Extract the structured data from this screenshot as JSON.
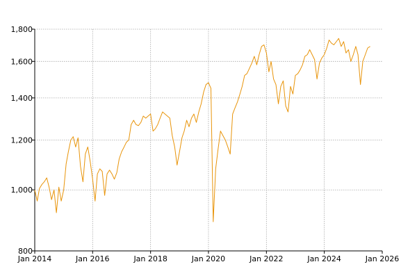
{
  "chart_data": {
    "type": "line",
    "title": "",
    "xlabel": "",
    "ylabel": "",
    "x_axis": "date",
    "y_scale": "log",
    "grid": true,
    "legend": "none",
    "xlim": [
      "2014-01-01",
      "2026-01-01"
    ],
    "ylim": [
      800,
      1800
    ],
    "x_ticks": [
      {
        "date": "2014-01-01",
        "label": "Jan 2014"
      },
      {
        "date": "2016-01-01",
        "label": "Jan 2016"
      },
      {
        "date": "2018-01-01",
        "label": "Jan 2018"
      },
      {
        "date": "2020-01-01",
        "label": "Jan 2020"
      },
      {
        "date": "2022-01-01",
        "label": "Jan 2022"
      },
      {
        "date": "2024-01-01",
        "label": "Jan 2024"
      },
      {
        "date": "2026-01-01",
        "label": "Jan 2026"
      }
    ],
    "y_ticks": [
      {
        "value": 800,
        "label": "800"
      },
      {
        "value": 1000,
        "label": "1,000"
      },
      {
        "value": 1200,
        "label": "1,200"
      },
      {
        "value": 1400,
        "label": "1,400"
      },
      {
        "value": 1600,
        "label": "1,600"
      },
      {
        "value": 1800,
        "label": "1,800"
      }
    ],
    "series": [
      {
        "color": "#e8940a",
        "points": [
          [
            "2014-01-01",
            1000
          ],
          [
            "2014-02-01",
            960
          ],
          [
            "2014-03-01",
            1005
          ],
          [
            "2014-04-01",
            1020
          ],
          [
            "2014-05-01",
            1030
          ],
          [
            "2014-06-01",
            1045
          ],
          [
            "2014-07-01",
            1010
          ],
          [
            "2014-08-01",
            965
          ],
          [
            "2014-09-01",
            1000
          ],
          [
            "2014-10-01",
            920
          ],
          [
            "2014-11-01",
            1010
          ],
          [
            "2014-12-01",
            960
          ],
          [
            "2015-01-01",
            1000
          ],
          [
            "2015-02-01",
            1100
          ],
          [
            "2015-03-01",
            1150
          ],
          [
            "2015-04-01",
            1200
          ],
          [
            "2015-05-01",
            1215
          ],
          [
            "2015-06-01",
            1170
          ],
          [
            "2015-07-01",
            1210
          ],
          [
            "2015-08-01",
            1090
          ],
          [
            "2015-09-01",
            1030
          ],
          [
            "2015-10-01",
            1140
          ],
          [
            "2015-11-01",
            1170
          ],
          [
            "2015-12-01",
            1110
          ],
          [
            "2016-01-01",
            1040
          ],
          [
            "2016-02-01",
            960
          ],
          [
            "2016-03-01",
            1060
          ],
          [
            "2016-04-01",
            1080
          ],
          [
            "2016-05-01",
            1070
          ],
          [
            "2016-06-01",
            980
          ],
          [
            "2016-07-01",
            1060
          ],
          [
            "2016-08-01",
            1075
          ],
          [
            "2016-09-01",
            1060
          ],
          [
            "2016-10-01",
            1040
          ],
          [
            "2016-11-01",
            1065
          ],
          [
            "2016-12-01",
            1120
          ],
          [
            "2017-01-01",
            1150
          ],
          [
            "2017-02-01",
            1170
          ],
          [
            "2017-03-01",
            1190
          ],
          [
            "2017-04-01",
            1200
          ],
          [
            "2017-05-01",
            1270
          ],
          [
            "2017-06-01",
            1290
          ],
          [
            "2017-07-01",
            1270
          ],
          [
            "2017-08-01",
            1265
          ],
          [
            "2017-09-01",
            1280
          ],
          [
            "2017-10-01",
            1310
          ],
          [
            "2017-11-01",
            1300
          ],
          [
            "2017-12-01",
            1310
          ],
          [
            "2018-01-01",
            1320
          ],
          [
            "2018-02-01",
            1240
          ],
          [
            "2018-03-01",
            1250
          ],
          [
            "2018-04-01",
            1270
          ],
          [
            "2018-05-01",
            1300
          ],
          [
            "2018-06-01",
            1330
          ],
          [
            "2018-07-01",
            1320
          ],
          [
            "2018-08-01",
            1310
          ],
          [
            "2018-09-01",
            1300
          ],
          [
            "2018-10-01",
            1220
          ],
          [
            "2018-11-01",
            1170
          ],
          [
            "2018-12-01",
            1095
          ],
          [
            "2019-01-01",
            1150
          ],
          [
            "2019-02-01",
            1210
          ],
          [
            "2019-03-01",
            1240
          ],
          [
            "2019-04-01",
            1290
          ],
          [
            "2019-05-01",
            1260
          ],
          [
            "2019-06-01",
            1300
          ],
          [
            "2019-07-01",
            1320
          ],
          [
            "2019-08-01",
            1280
          ],
          [
            "2019-09-01",
            1330
          ],
          [
            "2019-10-01",
            1370
          ],
          [
            "2019-11-01",
            1430
          ],
          [
            "2019-12-01",
            1470
          ],
          [
            "2020-01-01",
            1480
          ],
          [
            "2020-02-01",
            1450
          ],
          [
            "2020-03-01",
            890
          ],
          [
            "2020-04-01",
            1080
          ],
          [
            "2020-05-01",
            1160
          ],
          [
            "2020-06-01",
            1240
          ],
          [
            "2020-07-01",
            1220
          ],
          [
            "2020-08-01",
            1200
          ],
          [
            "2020-09-01",
            1170
          ],
          [
            "2020-10-01",
            1140
          ],
          [
            "2020-11-01",
            1320
          ],
          [
            "2020-12-01",
            1350
          ],
          [
            "2021-01-01",
            1380
          ],
          [
            "2021-02-01",
            1420
          ],
          [
            "2021-03-01",
            1460
          ],
          [
            "2021-04-01",
            1520
          ],
          [
            "2021-05-01",
            1530
          ],
          [
            "2021-06-01",
            1560
          ],
          [
            "2021-07-01",
            1590
          ],
          [
            "2021-08-01",
            1630
          ],
          [
            "2021-09-01",
            1580
          ],
          [
            "2021-10-01",
            1640
          ],
          [
            "2021-11-01",
            1690
          ],
          [
            "2021-12-01",
            1700
          ],
          [
            "2022-01-01",
            1650
          ],
          [
            "2022-02-01",
            1540
          ],
          [
            "2022-03-01",
            1600
          ],
          [
            "2022-04-01",
            1500
          ],
          [
            "2022-05-01",
            1470
          ],
          [
            "2022-06-01",
            1370
          ],
          [
            "2022-07-01",
            1460
          ],
          [
            "2022-08-01",
            1490
          ],
          [
            "2022-09-01",
            1360
          ],
          [
            "2022-10-01",
            1330
          ],
          [
            "2022-11-01",
            1460
          ],
          [
            "2022-12-01",
            1420
          ],
          [
            "2023-01-01",
            1520
          ],
          [
            "2023-02-01",
            1530
          ],
          [
            "2023-03-01",
            1550
          ],
          [
            "2023-04-01",
            1580
          ],
          [
            "2023-05-01",
            1630
          ],
          [
            "2023-06-01",
            1640
          ],
          [
            "2023-07-01",
            1670
          ],
          [
            "2023-08-01",
            1640
          ],
          [
            "2023-09-01",
            1610
          ],
          [
            "2023-10-01",
            1500
          ],
          [
            "2023-11-01",
            1590
          ],
          [
            "2023-12-01",
            1620
          ],
          [
            "2024-01-01",
            1640
          ],
          [
            "2024-02-01",
            1680
          ],
          [
            "2024-03-01",
            1730
          ],
          [
            "2024-04-01",
            1710
          ],
          [
            "2024-05-01",
            1700
          ],
          [
            "2024-06-01",
            1720
          ],
          [
            "2024-07-01",
            1740
          ],
          [
            "2024-08-01",
            1690
          ],
          [
            "2024-09-01",
            1720
          ],
          [
            "2024-10-01",
            1650
          ],
          [
            "2024-11-01",
            1670
          ],
          [
            "2024-12-01",
            1600
          ],
          [
            "2025-01-01",
            1640
          ],
          [
            "2025-02-01",
            1690
          ],
          [
            "2025-03-01",
            1640
          ],
          [
            "2025-04-01",
            1470
          ],
          [
            "2025-05-01",
            1600
          ],
          [
            "2025-06-01",
            1640
          ],
          [
            "2025-07-01",
            1680
          ],
          [
            "2025-08-01",
            1690
          ]
        ]
      }
    ]
  }
}
